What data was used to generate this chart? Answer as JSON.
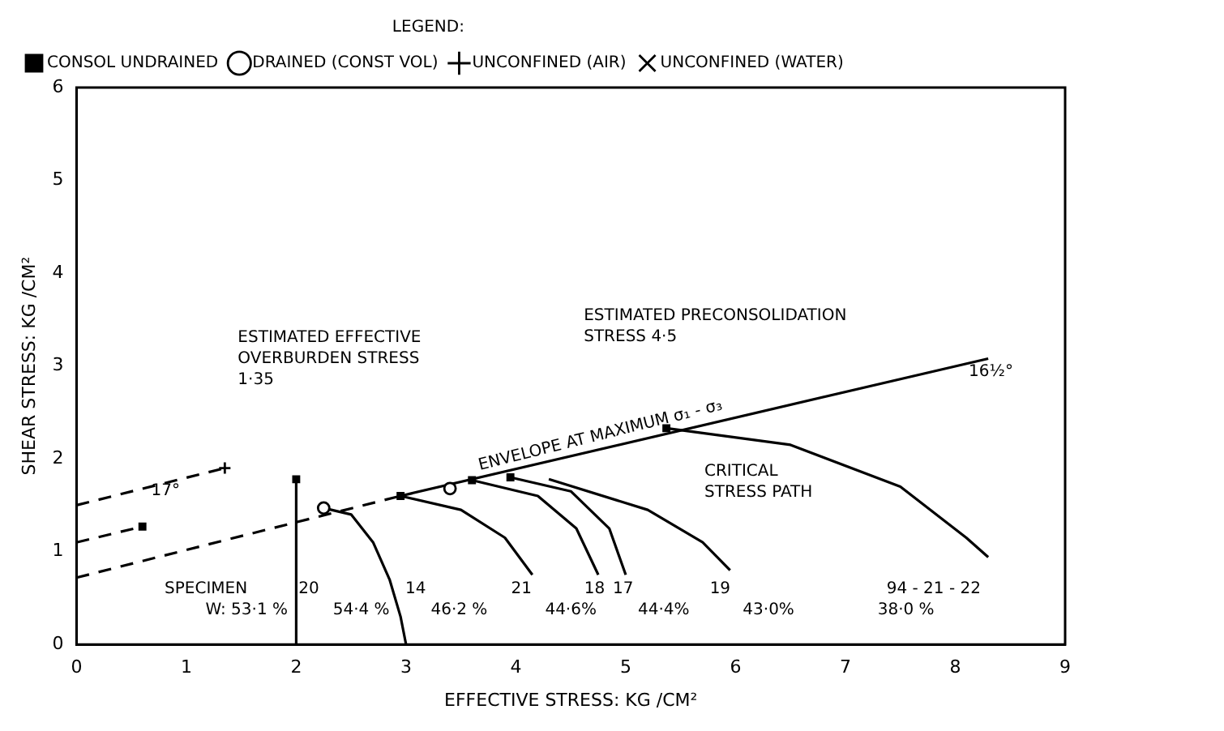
{
  "chart_data": {
    "type": "scatter",
    "xlabel": "EFFECTIVE STRESS: KG /CM²",
    "ylabel": "SHEAR STRESS: KG /CM²",
    "legend_title": "LEGEND:",
    "legend": "top",
    "grid": false,
    "xlim": [
      0,
      9
    ],
    "ylim": [
      0,
      6
    ],
    "xticks": [
      0,
      1,
      2,
      3,
      4,
      5,
      6,
      7,
      8,
      9
    ],
    "yticks": [
      0,
      1,
      2,
      3,
      4,
      5,
      6
    ],
    "series": [
      {
        "name": "CONSOL UNDRAINED",
        "type": "scatter",
        "marker": "square",
        "color": "#000000",
        "x": [
          0.6,
          2.0,
          2.95,
          3.6,
          3.95,
          5.37
        ],
        "values": [
          1.27,
          1.78,
          1.6,
          1.77,
          1.8,
          2.33
        ]
      },
      {
        "name": "DRAINED (CONST VOL)",
        "type": "scatter",
        "marker": "circle",
        "color": "#000000",
        "x": [
          2.25,
          3.4
        ],
        "values": [
          1.47,
          1.68
        ]
      },
      {
        "name": "UNCONFINED (AIR)",
        "type": "scatter",
        "marker": "cross",
        "color": "#000000",
        "x": [
          1.35
        ],
        "values": [
          1.9
        ]
      },
      {
        "name": "UNCONFINED (WATER)",
        "type": "scatter",
        "marker": "x",
        "color": "#000000"
      },
      {
        "type": "line",
        "line_style": "dashed",
        "color": "#000000",
        "x": [
          0,
          1.35
        ],
        "values": [
          1.5,
          1.9
        ]
      },
      {
        "type": "line",
        "line_style": "dashed",
        "color": "#000000",
        "x": [
          0,
          0.6
        ],
        "values": [
          1.1,
          1.27
        ]
      },
      {
        "type": "line",
        "line_style": "dashed",
        "color": "#000000",
        "x": [
          0,
          2.95
        ],
        "values": [
          0.72,
          1.6
        ]
      },
      {
        "type": "line",
        "line_style": "solid",
        "color": "#000000",
        "x": [
          2.95,
          8.3
        ],
        "values": [
          1.6,
          3.08
        ]
      },
      {
        "type": "line",
        "line_style": "solid",
        "color": "#000000",
        "x": [
          2.0,
          2.0
        ],
        "values": [
          1.78,
          0
        ]
      },
      {
        "type": "line",
        "line_style": "solid",
        "color": "#000000",
        "x": [
          2.25,
          2.5,
          2.7,
          2.85,
          2.95,
          3.0
        ],
        "values": [
          1.47,
          1.4,
          1.1,
          0.7,
          0.3,
          0
        ]
      },
      {
        "type": "line",
        "line_style": "solid",
        "color": "#000000",
        "x": [
          2.95,
          3.5,
          3.9,
          4.15
        ],
        "values": [
          1.6,
          1.45,
          1.15,
          0.75
        ]
      },
      {
        "type": "line",
        "line_style": "solid",
        "color": "#000000",
        "x": [
          3.6,
          4.2,
          4.55,
          4.75
        ],
        "values": [
          1.77,
          1.6,
          1.25,
          0.75
        ]
      },
      {
        "type": "line",
        "line_style": "solid",
        "color": "#000000",
        "x": [
          3.95,
          4.5,
          4.85,
          5.0
        ],
        "values": [
          1.8,
          1.65,
          1.25,
          0.75
        ]
      },
      {
        "type": "line",
        "line_style": "solid",
        "color": "#000000",
        "x": [
          4.3,
          5.2,
          5.7,
          5.95
        ],
        "values": [
          1.78,
          1.45,
          1.1,
          0.8
        ]
      },
      {
        "type": "line",
        "line_style": "solid",
        "color": "#000000",
        "x": [
          5.37,
          6.5,
          7.5,
          8.1,
          8.3
        ],
        "values": [
          2.33,
          2.15,
          1.7,
          1.15,
          0.94
        ]
      }
    ],
    "annotations": [
      "ESTIMATED EFFECTIVE\nOVERBURDEN STRESS\n1·35",
      "ESTIMATED PRECONSOLIDATION\nSTRESS 4·5",
      "ENVELOPE AT MAXIMUM σ₁ - σ₃",
      "17°",
      "16½°",
      "CRITICAL\nSTRESS PATH",
      "SPECIMEN",
      "20",
      "14",
      "21",
      "18",
      "17",
      "19",
      "94 - 21 - 22",
      "W: 53·1 %",
      "54·4 %",
      "46·2 %",
      "44·6%",
      "44·4%",
      "43·0%",
      "38·0 %"
    ]
  }
}
